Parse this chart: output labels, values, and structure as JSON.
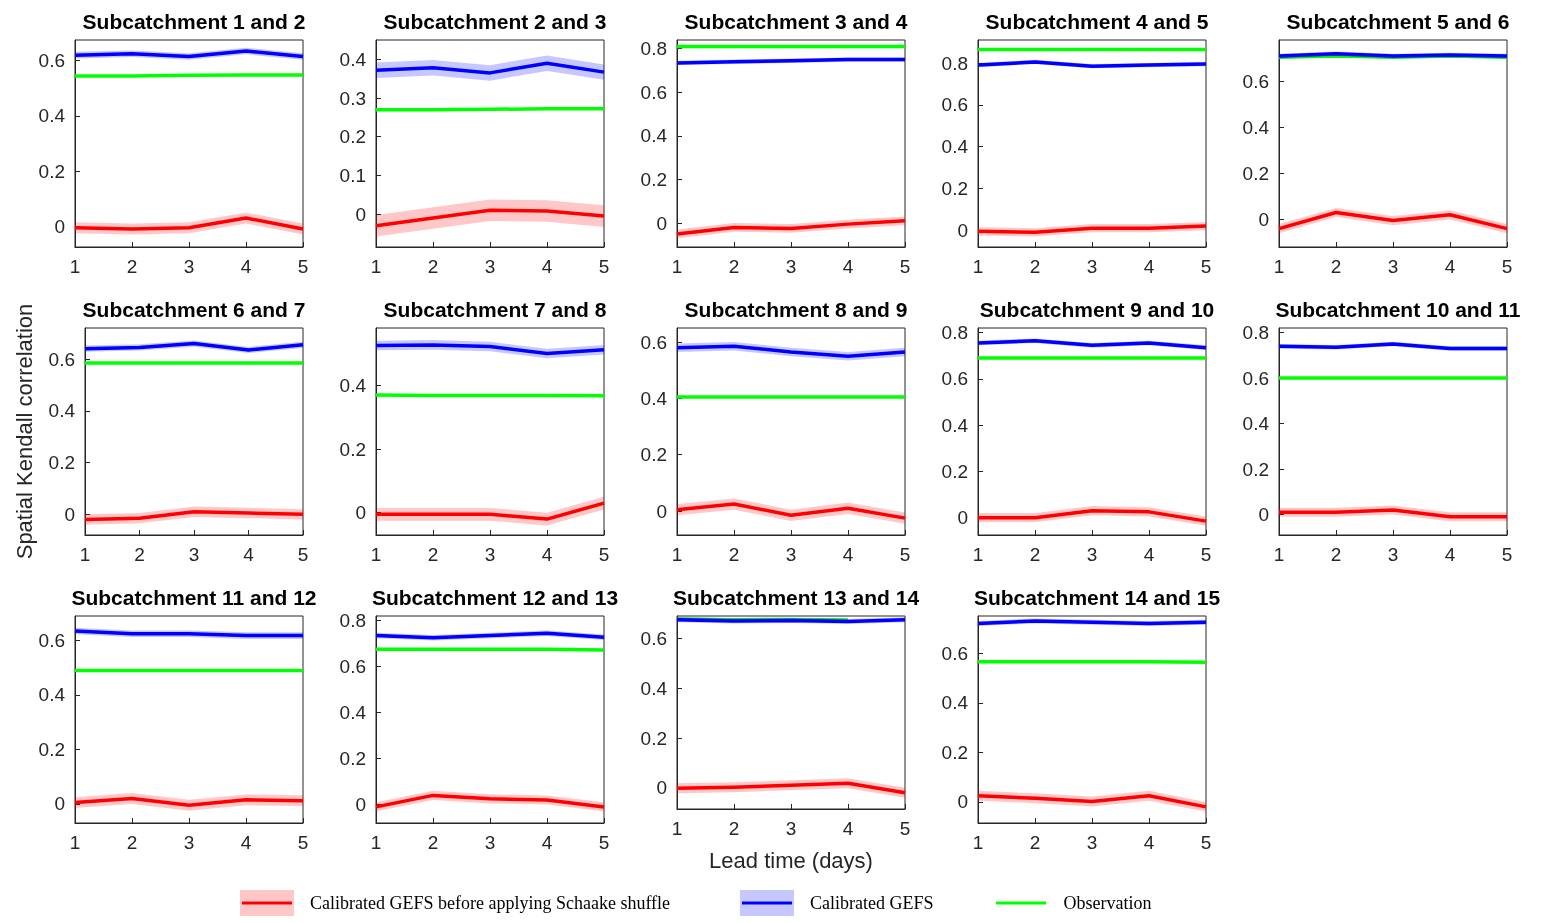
{
  "chart_data": [
    {
      "type": "line",
      "title": "Subcatchment 1 and 2",
      "x": [
        1,
        2,
        3,
        4,
        5
      ],
      "xlim": [
        1,
        5
      ],
      "xticks": [
        1,
        2,
        3,
        4,
        5
      ],
      "ylim": [
        -0.075,
        0.675
      ],
      "yticks": [
        0,
        0.2,
        0.4,
        0.6
      ],
      "series": [
        {
          "color": "#ff0000",
          "values": [
            -0.005,
            -0.01,
            -0.005,
            0.03,
            -0.01
          ],
          "lower": [
            -0.025,
            -0.03,
            -0.025,
            0.01,
            -0.03
          ],
          "upper": [
            0.015,
            0.01,
            0.015,
            0.05,
            0.01
          ]
        },
        {
          "color": "#0000ff",
          "values": [
            0.62,
            0.625,
            0.615,
            0.635,
            0.615
          ],
          "lower": [
            0.608,
            0.613,
            0.603,
            0.623,
            0.603
          ],
          "upper": [
            0.632,
            0.637,
            0.627,
            0.647,
            0.627
          ]
        },
        {
          "color": "#00ff00",
          "values": [
            0.545,
            0.545,
            0.547,
            0.548,
            0.548
          ]
        }
      ]
    },
    {
      "type": "line",
      "title": "Subcatchment 2 and 3",
      "x": [
        1,
        2,
        3,
        4,
        5
      ],
      "xlim": [
        1,
        5
      ],
      "xticks": [
        1,
        2,
        3,
        4,
        5
      ],
      "ylim": [
        -0.085,
        0.45
      ],
      "yticks": [
        0,
        0.1,
        0.2,
        0.3,
        0.4
      ],
      "series": [
        {
          "color": "#ff0000",
          "values": [
            -0.03,
            -0.01,
            0.01,
            0.008,
            -0.005
          ],
          "lower": [
            -0.058,
            -0.038,
            -0.018,
            -0.02,
            -0.033
          ],
          "upper": [
            -0.002,
            0.018,
            0.038,
            0.036,
            0.023
          ]
        },
        {
          "color": "#0000ff",
          "values": [
            0.372,
            0.378,
            0.365,
            0.39,
            0.367
          ],
          "lower": [
            0.352,
            0.358,
            0.345,
            0.37,
            0.347
          ],
          "upper": [
            0.392,
            0.398,
            0.385,
            0.41,
            0.387
          ]
        },
        {
          "color": "#00ff00",
          "values": [
            0.27,
            0.27,
            0.271,
            0.272,
            0.272
          ]
        }
      ]
    },
    {
      "type": "line",
      "title": "Subcatchment 3 and 4",
      "x": [
        1,
        2,
        3,
        4,
        5
      ],
      "xlim": [
        1,
        5
      ],
      "xticks": [
        1,
        2,
        3,
        4,
        5
      ],
      "ylim": [
        -0.11,
        0.84
      ],
      "yticks": [
        0,
        0.2,
        0.4,
        0.6,
        0.8
      ],
      "series": [
        {
          "color": "#ff0000",
          "values": [
            -0.05,
            -0.02,
            -0.025,
            -0.005,
            0.01
          ],
          "lower": [
            -0.07,
            -0.04,
            -0.045,
            -0.025,
            -0.01
          ],
          "upper": [
            -0.03,
            0,
            -0.005,
            0.015,
            0.03
          ]
        },
        {
          "color": "#0000ff",
          "values": [
            0.735,
            0.74,
            0.745,
            0.75,
            0.75
          ],
          "lower": [
            0.725,
            0.73,
            0.735,
            0.74,
            0.74
          ],
          "upper": [
            0.745,
            0.75,
            0.755,
            0.76,
            0.76
          ]
        },
        {
          "color": "#00ff00",
          "values": [
            0.81,
            0.81,
            0.81,
            0.81,
            0.81
          ]
        }
      ]
    },
    {
      "type": "line",
      "title": "Subcatchment 4 and 5",
      "x": [
        1,
        2,
        3,
        4,
        5
      ],
      "xlim": [
        1,
        5
      ],
      "xticks": [
        1,
        2,
        3,
        4,
        5
      ],
      "ylim": [
        -0.08,
        0.91
      ],
      "yticks": [
        0,
        0.2,
        0.4,
        0.6,
        0.8
      ],
      "series": [
        {
          "color": "#ff0000",
          "values": [
            -0.005,
            -0.01,
            0.01,
            0.01,
            0.02
          ],
          "lower": [
            -0.025,
            -0.03,
            -0.01,
            -0.01,
            0
          ],
          "upper": [
            0.015,
            0.01,
            0.03,
            0.03,
            0.04
          ]
        },
        {
          "color": "#0000ff",
          "values": [
            0.79,
            0.805,
            0.785,
            0.79,
            0.795
          ],
          "lower": [
            0.78,
            0.795,
            0.775,
            0.78,
            0.785
          ],
          "upper": [
            0.8,
            0.815,
            0.795,
            0.8,
            0.805
          ]
        },
        {
          "color": "#00ff00",
          "values": [
            0.865,
            0.865,
            0.865,
            0.865,
            0.865
          ]
        }
      ]
    },
    {
      "type": "line",
      "title": "Subcatchment 5 and 6",
      "x": [
        1,
        2,
        3,
        4,
        5
      ],
      "xlim": [
        1,
        5
      ],
      "xticks": [
        1,
        2,
        3,
        4,
        5
      ],
      "ylim": [
        -0.12,
        0.78
      ],
      "yticks": [
        0,
        0.2,
        0.4,
        0.6
      ],
      "series": [
        {
          "color": "#ff0000",
          "values": [
            -0.04,
            0.03,
            -0.005,
            0.02,
            -0.04
          ],
          "lower": [
            -0.06,
            0.01,
            -0.025,
            0,
            -0.06
          ],
          "upper": [
            -0.02,
            0.05,
            0.015,
            0.04,
            -0.02
          ]
        },
        {
          "color": "#0000ff",
          "values": [
            0.71,
            0.72,
            0.71,
            0.715,
            0.71
          ],
          "lower": [
            0.7,
            0.71,
            0.7,
            0.705,
            0.7
          ],
          "upper": [
            0.72,
            0.73,
            0.72,
            0.725,
            0.72
          ]
        },
        {
          "color": "#00ff00",
          "values": [
            0.705,
            0.71,
            0.705,
            0.71,
            0.705
          ]
        }
      ]
    },
    {
      "type": "line",
      "title": "Subcatchment 6 and 7",
      "ylabel": "Spatial Kendall correlation",
      "x": [
        1,
        2,
        3,
        4,
        5
      ],
      "xlim": [
        1,
        5
      ],
      "xticks": [
        1,
        2,
        3,
        4,
        5
      ],
      "ylim": [
        -0.08,
        0.72
      ],
      "yticks": [
        0,
        0.2,
        0.4,
        0.6
      ],
      "series": [
        {
          "color": "#ff0000",
          "values": [
            -0.02,
            -0.015,
            0.01,
            0.005,
            0
          ],
          "lower": [
            -0.04,
            -0.035,
            -0.01,
            -0.015,
            -0.02
          ],
          "upper": [
            0,
            0.005,
            0.03,
            0.025,
            0.02
          ]
        },
        {
          "color": "#0000ff",
          "values": [
            0.64,
            0.645,
            0.66,
            0.635,
            0.655
          ],
          "lower": [
            0.628,
            0.633,
            0.648,
            0.623,
            0.643
          ],
          "upper": [
            0.652,
            0.657,
            0.672,
            0.647,
            0.667
          ]
        },
        {
          "color": "#00ff00",
          "values": [
            0.585,
            0.585,
            0.585,
            0.585,
            0.585
          ]
        }
      ]
    },
    {
      "type": "line",
      "title": "Subcatchment 7 and 8",
      "x": [
        1,
        2,
        3,
        4,
        5
      ],
      "xlim": [
        1,
        5
      ],
      "xticks": [
        1,
        2,
        3,
        4,
        5
      ],
      "ylim": [
        -0.07,
        0.58
      ],
      "yticks": [
        0,
        0.2,
        0.4
      ],
      "series": [
        {
          "color": "#ff0000",
          "values": [
            -0.005,
            -0.005,
            -0.005,
            -0.02,
            0.03
          ],
          "lower": [
            -0.025,
            -0.025,
            -0.025,
            -0.04,
            0.01
          ],
          "upper": [
            0.015,
            0.015,
            0.015,
            0,
            0.05
          ]
        },
        {
          "color": "#0000ff",
          "values": [
            0.525,
            0.527,
            0.522,
            0.5,
            0.512
          ],
          "lower": [
            0.51,
            0.512,
            0.507,
            0.485,
            0.497
          ],
          "upper": [
            0.54,
            0.542,
            0.537,
            0.515,
            0.527
          ]
        },
        {
          "color": "#00ff00",
          "values": [
            0.37,
            0.368,
            0.368,
            0.368,
            0.367
          ]
        }
      ]
    },
    {
      "type": "line",
      "title": "Subcatchment 8 and 9",
      "x": [
        1,
        2,
        3,
        4,
        5
      ],
      "xlim": [
        1,
        5
      ],
      "xticks": [
        1,
        2,
        3,
        4,
        5
      ],
      "ylim": [
        -0.085,
        0.65
      ],
      "yticks": [
        0,
        0.2,
        0.4,
        0.6
      ],
      "series": [
        {
          "color": "#ff0000",
          "values": [
            0.005,
            0.025,
            -0.015,
            0.01,
            -0.025
          ],
          "lower": [
            -0.015,
            0.005,
            -0.035,
            -0.01,
            -0.045
          ],
          "upper": [
            0.025,
            0.045,
            0.005,
            0.03,
            -0.005
          ]
        },
        {
          "color": "#0000ff",
          "values": [
            0.58,
            0.585,
            0.565,
            0.55,
            0.565
          ],
          "lower": [
            0.565,
            0.57,
            0.55,
            0.535,
            0.55
          ],
          "upper": [
            0.595,
            0.6,
            0.58,
            0.565,
            0.58
          ]
        },
        {
          "color": "#00ff00",
          "values": [
            0.405,
            0.405,
            0.405,
            0.405,
            0.405
          ]
        }
      ]
    },
    {
      "type": "line",
      "title": "Subcatchment 9 and 10",
      "x": [
        1,
        2,
        3,
        4,
        5
      ],
      "xlim": [
        1,
        5
      ],
      "xticks": [
        1,
        2,
        3,
        4,
        5
      ],
      "ylim": [
        -0.075,
        0.82
      ],
      "yticks": [
        0,
        0.2,
        0.4,
        0.6,
        0.8
      ],
      "series": [
        {
          "color": "#ff0000",
          "values": [
            0,
            0,
            0.03,
            0.025,
            -0.015
          ],
          "lower": [
            -0.02,
            -0.02,
            0.01,
            0.005,
            -0.035
          ],
          "upper": [
            0.02,
            0.02,
            0.05,
            0.045,
            0.005
          ]
        },
        {
          "color": "#0000ff",
          "values": [
            0.755,
            0.765,
            0.745,
            0.755,
            0.735
          ],
          "lower": [
            0.745,
            0.755,
            0.735,
            0.745,
            0.725
          ],
          "upper": [
            0.765,
            0.775,
            0.755,
            0.765,
            0.745
          ]
        },
        {
          "color": "#00ff00",
          "values": [
            0.69,
            0.69,
            0.69,
            0.69,
            0.69
          ]
        }
      ]
    },
    {
      "type": "line",
      "title": "Subcatchment 10 and 11",
      "x": [
        1,
        2,
        3,
        4,
        5
      ],
      "xlim": [
        1,
        5
      ],
      "xticks": [
        1,
        2,
        3,
        4,
        5
      ],
      "ylim": [
        -0.09,
        0.82
      ],
      "yticks": [
        0,
        0.2,
        0.4,
        0.6,
        0.8
      ],
      "series": [
        {
          "color": "#ff0000",
          "values": [
            0.01,
            0.01,
            0.02,
            -0.01,
            -0.01
          ],
          "lower": [
            -0.01,
            -0.01,
            0,
            -0.03,
            -0.03
          ],
          "upper": [
            0.03,
            0.03,
            0.04,
            0.01,
            0.01
          ]
        },
        {
          "color": "#0000ff",
          "values": [
            0.74,
            0.735,
            0.75,
            0.73,
            0.73
          ],
          "lower": [
            0.73,
            0.725,
            0.74,
            0.72,
            0.72
          ],
          "upper": [
            0.75,
            0.745,
            0.76,
            0.74,
            0.74
          ]
        },
        {
          "color": "#00ff00",
          "values": [
            0.6,
            0.6,
            0.6,
            0.6,
            0.6
          ]
        }
      ]
    },
    {
      "type": "line",
      "title": "Subcatchment 11 and 12",
      "x": [
        1,
        2,
        3,
        4,
        5
      ],
      "xlim": [
        1,
        5
      ],
      "xticks": [
        1,
        2,
        3,
        4,
        5
      ],
      "ylim": [
        -0.07,
        0.69
      ],
      "yticks": [
        0,
        0.2,
        0.4,
        0.6
      ],
      "series": [
        {
          "color": "#ff0000",
          "values": [
            0.005,
            0.02,
            -0.005,
            0.015,
            0.012
          ],
          "lower": [
            -0.015,
            0,
            -0.025,
            -0.005,
            -0.008
          ],
          "upper": [
            0.025,
            0.04,
            0.015,
            0.035,
            0.032
          ]
        },
        {
          "color": "#0000ff",
          "values": [
            0.635,
            0.625,
            0.625,
            0.618,
            0.618
          ],
          "lower": [
            0.623,
            0.613,
            0.613,
            0.606,
            0.606
          ],
          "upper": [
            0.647,
            0.637,
            0.637,
            0.63,
            0.63
          ]
        },
        {
          "color": "#00ff00",
          "values": [
            0.49,
            0.49,
            0.49,
            0.49,
            0.49
          ]
        }
      ]
    },
    {
      "type": "line",
      "title": "Subcatchment 12 and 13",
      "x": [
        1,
        2,
        3,
        4,
        5
      ],
      "xlim": [
        1,
        5
      ],
      "xticks": [
        1,
        2,
        3,
        4,
        5
      ],
      "ylim": [
        -0.08,
        0.82
      ],
      "yticks": [
        0,
        0.2,
        0.4,
        0.6,
        0.8
      ],
      "series": [
        {
          "color": "#ff0000",
          "values": [
            -0.01,
            0.04,
            0.025,
            0.02,
            -0.01
          ],
          "lower": [
            -0.03,
            0.02,
            0.005,
            0,
            -0.03
          ],
          "upper": [
            0.01,
            0.06,
            0.045,
            0.04,
            0.01
          ]
        },
        {
          "color": "#0000ff",
          "values": [
            0.735,
            0.725,
            0.735,
            0.745,
            0.728
          ],
          "lower": [
            0.723,
            0.713,
            0.723,
            0.733,
            0.716
          ],
          "upper": [
            0.747,
            0.737,
            0.747,
            0.757,
            0.74
          ]
        },
        {
          "color": "#00ff00",
          "values": [
            0.675,
            0.675,
            0.675,
            0.675,
            0.672
          ]
        }
      ]
    },
    {
      "type": "line",
      "title": "Subcatchment 13 and 14",
      "xlabel": "Lead time (days)",
      "x": [
        1,
        2,
        3,
        4,
        5
      ],
      "xlim": [
        1,
        5
      ],
      "xticks": [
        1,
        2,
        3,
        4,
        5
      ],
      "ylim": [
        -0.085,
        0.69
      ],
      "yticks": [
        0,
        0.2,
        0.4,
        0.6
      ],
      "series": [
        {
          "color": "#ff0000",
          "values": [
            -0.002,
            0.002,
            0.01,
            0.018,
            -0.02
          ],
          "lower": [
            -0.022,
            -0.018,
            -0.01,
            -0.002,
            -0.04
          ],
          "upper": [
            0.018,
            0.022,
            0.03,
            0.038,
            0
          ]
        },
        {
          "color": "#0000ff",
          "values": [
            0.675,
            0.67,
            0.672,
            0.668,
            0.675
          ],
          "lower": [
            0.665,
            0.66,
            0.662,
            0.658,
            0.665
          ],
          "upper": [
            0.685,
            0.68,
            0.682,
            0.678,
            0.685
          ]
        },
        {
          "color": "#00ff00",
          "values": [
            0.678,
            0.675,
            0.676,
            0.674,
            null
          ]
        }
      ]
    },
    {
      "type": "line",
      "title": "Subcatchment 14 and 15",
      "legend": "bottom",
      "x": [
        1,
        2,
        3,
        4,
        5
      ],
      "xlim": [
        1,
        5
      ],
      "xticks": [
        1,
        2,
        3,
        4,
        5
      ],
      "ylim": [
        -0.085,
        0.75
      ],
      "yticks": [
        0,
        0.2,
        0.4,
        0.6
      ],
      "series": [
        {
          "name": "Calibrated  GEFS before applying Schaake shuffle",
          "color": "#ff0000",
          "values": [
            0.025,
            0.015,
            0.002,
            0.025,
            -0.02
          ],
          "lower": [
            0.005,
            -0.005,
            -0.018,
            0.005,
            -0.04
          ],
          "upper": [
            0.045,
            0.035,
            0.022,
            0.045,
            0
          ]
        },
        {
          "name": "Calibrated GEFS",
          "color": "#0000ff",
          "values": [
            0.72,
            0.73,
            0.725,
            0.72,
            0.725
          ],
          "lower": [
            0.71,
            0.72,
            0.715,
            0.71,
            0.715
          ],
          "upper": [
            0.73,
            0.74,
            0.735,
            0.73,
            0.735
          ]
        },
        {
          "name": "Observation",
          "color": "#00ff00",
          "values": [
            0.565,
            0.565,
            0.565,
            0.565,
            0.563
          ]
        }
      ]
    }
  ]
}
